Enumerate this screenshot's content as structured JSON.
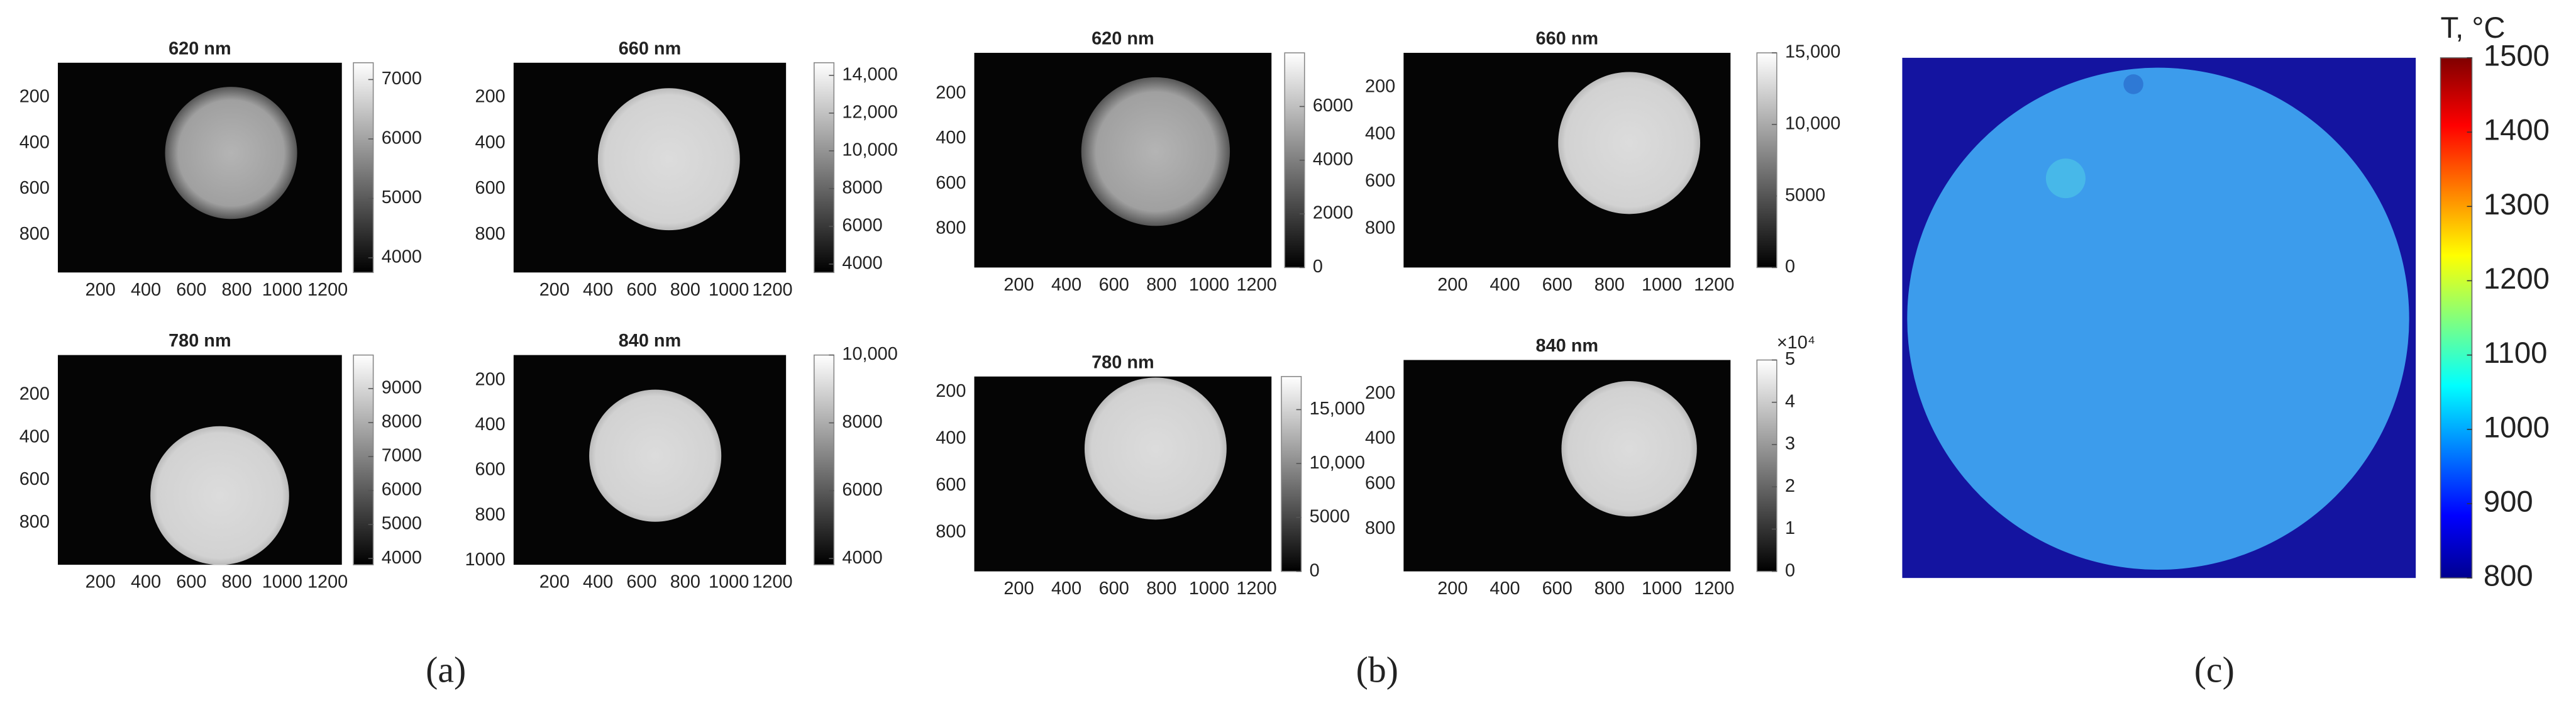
{
  "panels": [
    {
      "label": "(a)",
      "plots": [
        {
          "title": "620 nm",
          "x_ticks": [
            "200",
            "400",
            "600",
            "800",
            "1000",
            "1200"
          ],
          "y_ticks": [
            "200",
            "400",
            "600",
            "800"
          ],
          "colorbar_ticks": [
            "4000",
            "5000",
            "6000",
            "7000"
          ]
        },
        {
          "title": "660 nm",
          "x_ticks": [
            "200",
            "400",
            "600",
            "800",
            "1000",
            "1200"
          ],
          "y_ticks": [
            "200",
            "400",
            "600",
            "800"
          ],
          "colorbar_ticks": [
            "4000",
            "6000",
            "8000",
            "10,000",
            "12,000",
            "14,000"
          ]
        },
        {
          "title": "780 nm",
          "x_ticks": [
            "200",
            "400",
            "600",
            "800",
            "1000",
            "1200"
          ],
          "y_ticks": [
            "200",
            "400",
            "600",
            "800"
          ],
          "colorbar_ticks": [
            "4000",
            "5000",
            "6000",
            "7000",
            "8000",
            "9000"
          ]
        },
        {
          "title": "840 nm",
          "x_ticks": [
            "200",
            "400",
            "600",
            "800",
            "1000",
            "1200"
          ],
          "y_ticks": [
            "200",
            "400",
            "600",
            "800",
            "1000"
          ],
          "colorbar_ticks": [
            "4000",
            "6000",
            "8000",
            "10,000"
          ]
        }
      ]
    },
    {
      "label": "(b)",
      "plots": [
        {
          "title": "620 nm",
          "x_ticks": [
            "200",
            "400",
            "600",
            "800",
            "1000",
            "1200"
          ],
          "y_ticks": [
            "200",
            "400",
            "600",
            "800"
          ],
          "colorbar_ticks": [
            "0",
            "2000",
            "4000",
            "6000"
          ]
        },
        {
          "title": "660 nm",
          "x_ticks": [
            "200",
            "400",
            "600",
            "800",
            "1000",
            "1200"
          ],
          "y_ticks": [
            "200",
            "400",
            "600",
            "800"
          ],
          "colorbar_ticks": [
            "0",
            "5000",
            "10,000",
            "15,000"
          ]
        },
        {
          "title": "780 nm",
          "x_ticks": [
            "200",
            "400",
            "600",
            "800",
            "1000",
            "1200"
          ],
          "y_ticks": [
            "200",
            "400",
            "600",
            "800"
          ],
          "colorbar_ticks": [
            "0",
            "5000",
            "10,000",
            "15,000"
          ]
        },
        {
          "title": "840 nm",
          "x_ticks": [
            "200",
            "400",
            "600",
            "800",
            "1000",
            "1200"
          ],
          "y_ticks": [
            "200",
            "400",
            "600",
            "800"
          ],
          "colorbar_ticks": [
            "0",
            "1",
            "2",
            "3",
            "4",
            "5"
          ],
          "colorbar_multiplier": "×10⁴"
        }
      ]
    },
    {
      "label": "(c)",
      "colorbar_title": "T, °C",
      "colorbar_ticks": [
        "800",
        "900",
        "1000",
        "1100",
        "1200",
        "1300",
        "1400",
        "1500"
      ]
    }
  ]
}
